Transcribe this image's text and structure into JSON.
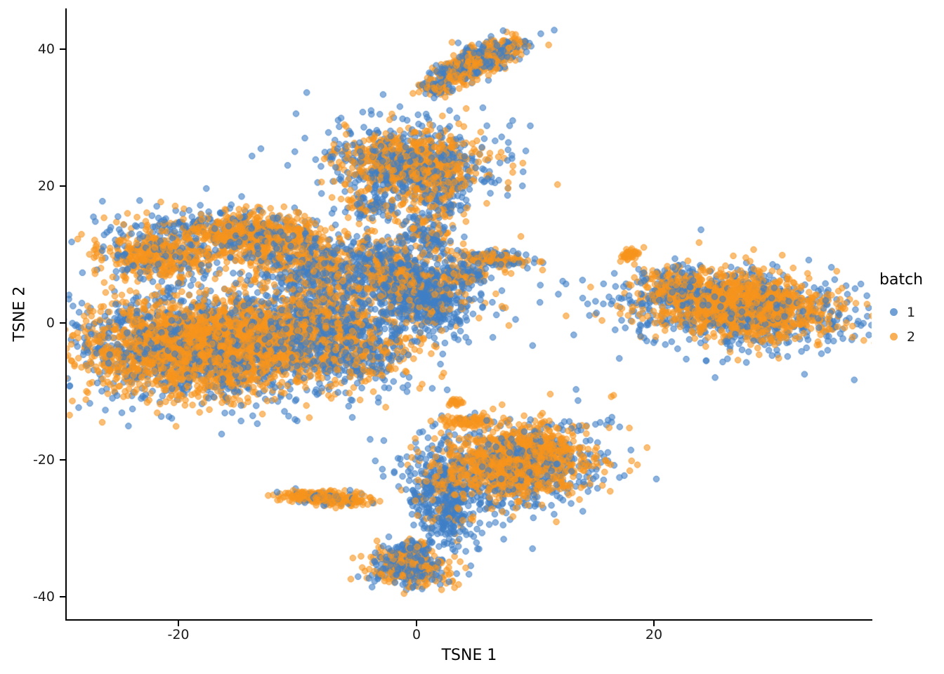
{
  "chart_data": {
    "type": "scatter",
    "title": "",
    "xlabel": "TSNE 1",
    "ylabel": "TSNE 2",
    "xlim": [
      -29.4,
      38.3
    ],
    "ylim": [
      -43.3,
      45.9
    ],
    "x_ticks": [
      -20,
      0,
      20
    ],
    "x_tick_labels": [
      "-20",
      "0",
      "20"
    ],
    "y_ticks": [
      40,
      20,
      0,
      -20,
      -40
    ],
    "y_tick_labels": [
      "40",
      "20",
      "0",
      "-20",
      "-40"
    ],
    "grid": false,
    "legend": {
      "title": "batch",
      "position": "right",
      "items": [
        {
          "label": "1",
          "batch": "1"
        },
        {
          "label": "2",
          "batch": "2"
        }
      ]
    },
    "point_colors": {
      "1": [
        63,
        127,
        198
      ],
      "2": [
        247,
        148,
        29
      ]
    },
    "fill_alpha": 0.6,
    "stroke_alpha": 0.8,
    "point_radius": 4.2,
    "seed": 42,
    "clusters": [
      {
        "cx": 5.2,
        "cy": 38.2,
        "sx": 2.3,
        "sy": 0.9,
        "rot": 41,
        "n": 650,
        "p2": 0.55
      },
      {
        "cx": 1.6,
        "cy": 34.2,
        "sx": 0.7,
        "sy": 0.7,
        "rot": 0,
        "n": 60,
        "p2": 0.5
      },
      {
        "cx": -0.5,
        "cy": 23.0,
        "sx": 4.3,
        "sy": 3.3,
        "rot": -15,
        "n": 280,
        "p2": 0.1
      },
      {
        "cx": -0.5,
        "cy": 23.0,
        "sx": 3.1,
        "sy": 2.4,
        "rot": -15,
        "n": 900,
        "p2": 0.62
      },
      {
        "cx": 2.2,
        "cy": 17.5,
        "sx": 0.9,
        "sy": 1.6,
        "rot": 0,
        "n": 90,
        "p2": 0.45
      },
      {
        "cx": -3.8,
        "cy": 16.8,
        "sx": 1.1,
        "sy": 1.1,
        "rot": 0,
        "n": 90,
        "p2": 0.5
      },
      {
        "cx": 0.8,
        "cy": 13.0,
        "sx": 1.2,
        "sy": 1.8,
        "rot": 0,
        "n": 140,
        "p2": 0.45
      },
      {
        "cx": 6.3,
        "cy": 9.3,
        "sx": 1.8,
        "sy": 0.55,
        "rot": -8,
        "n": 200,
        "p2": 0.55
      },
      {
        "cx": 4.0,
        "cy": 7.0,
        "sx": 1.2,
        "sy": 0.9,
        "rot": 0,
        "n": 130,
        "p2": 0.4
      },
      {
        "cx": -17.0,
        "cy": -3.0,
        "sx": 6.6,
        "sy": 4.6,
        "rot": 0,
        "n": 900,
        "p2": 0.12
      },
      {
        "cx": -17.0,
        "cy": 14.0,
        "sx": 4.0,
        "sy": 1.6,
        "rot": 0,
        "n": 250,
        "p2": 0.35
      },
      {
        "cx": -17.5,
        "cy": -3.5,
        "sx": 5.2,
        "sy": 3.4,
        "rot": 0,
        "n": 2600,
        "p2": 0.78
      },
      {
        "cx": -21.5,
        "cy": 9.8,
        "sx": 2.6,
        "sy": 1.7,
        "rot": 0,
        "n": 500,
        "p2": 0.72
      },
      {
        "cx": -13.5,
        "cy": 12.5,
        "sx": 2.6,
        "sy": 1.7,
        "rot": 0,
        "n": 550,
        "p2": 0.72
      },
      {
        "cx": -9.0,
        "cy": 9.0,
        "sx": 2.6,
        "sy": 2.4,
        "rot": 0,
        "n": 450,
        "p2": 0.55
      },
      {
        "cx": -8.0,
        "cy": 2.0,
        "sx": 3.0,
        "sy": 3.0,
        "rot": 0,
        "n": 600,
        "p2": 0.5
      },
      {
        "cx": -5.0,
        "cy": -4.0,
        "sx": 2.6,
        "sy": 2.6,
        "rot": 0,
        "n": 450,
        "p2": 0.45
      },
      {
        "cx": 0.3,
        "cy": 4.0,
        "sx": 2.0,
        "sy": 2.6,
        "rot": 20,
        "n": 700,
        "p2": 0.18
      },
      {
        "cx": -2.5,
        "cy": 8.0,
        "sx": 2.0,
        "sy": 2.2,
        "rot": 10,
        "n": 450,
        "p2": 0.45
      },
      {
        "cx": 27.0,
        "cy": 2.0,
        "sx": 5.2,
        "sy": 3.1,
        "rot": -8,
        "n": 600,
        "p2": 0.1
      },
      {
        "cx": 27.5,
        "cy": 2.5,
        "sx": 3.9,
        "sy": 2.3,
        "rot": -8,
        "n": 1250,
        "p2": 0.8
      },
      {
        "cx": 21.5,
        "cy": 5.5,
        "sx": 1.6,
        "sy": 1.6,
        "rot": 0,
        "n": 180,
        "p2": 0.6
      },
      {
        "cx": 17.9,
        "cy": 10.0,
        "sx": 0.5,
        "sy": 0.35,
        "rot": 30,
        "n": 45,
        "p2": 1.0
      },
      {
        "cx": 7.6,
        "cy": -21.5,
        "sx": 4.2,
        "sy": 3.4,
        "rot": 25,
        "n": 550,
        "p2": 0.12
      },
      {
        "cx": 2.2,
        "cy": -26.0,
        "sx": 1.3,
        "sy": 3.4,
        "rot": 10,
        "n": 380,
        "p2": 0.15
      },
      {
        "cx": 8.6,
        "cy": -20.3,
        "sx": 3.1,
        "sy": 2.5,
        "rot": 25,
        "n": 1050,
        "p2": 0.8
      },
      {
        "cx": 4.2,
        "cy": -14.4,
        "sx": 1.3,
        "sy": 0.5,
        "rot": 0,
        "n": 80,
        "p2": 0.95
      },
      {
        "cx": 3.3,
        "cy": -11.5,
        "sx": 0.4,
        "sy": 0.3,
        "rot": 0,
        "n": 18,
        "p2": 1.0
      },
      {
        "cx": -7.8,
        "cy": -25.6,
        "sx": 1.9,
        "sy": 0.5,
        "rot": -6,
        "n": 280,
        "p2": 0.82
      },
      {
        "cx": -0.5,
        "cy": -35.8,
        "sx": 1.7,
        "sy": 1.4,
        "rot": -20,
        "n": 430,
        "p2": 0.5
      },
      {
        "cx": -0.2,
        "cy": -32.8,
        "sx": 0.8,
        "sy": 0.6,
        "rot": 0,
        "n": 60,
        "p2": 0.3
      }
    ],
    "extra_points": [
      {
        "x": 16.4,
        "y": -10.8,
        "batch": "2"
      },
      {
        "x": 16.6,
        "y": -10.6,
        "batch": "2"
      },
      {
        "x": 7.2,
        "y": 2.4,
        "batch": "2"
      },
      {
        "x": 7.5,
        "y": 2.2,
        "batch": "2"
      },
      {
        "x": 12.6,
        "y": 1.0,
        "batch": "2"
      },
      {
        "x": 5.6,
        "y": 31.4,
        "batch": "1"
      },
      {
        "x": 2.8,
        "y": 31.0,
        "batch": "1"
      },
      {
        "x": 2.2,
        "y": 30.2,
        "batch": "2"
      },
      {
        "x": -25.9,
        "y": -2.2,
        "batch": "1"
      },
      {
        "x": 8.8,
        "y": 12.6,
        "batch": "2"
      },
      {
        "x": 2.6,
        "y": -9.8,
        "batch": "1"
      }
    ]
  }
}
